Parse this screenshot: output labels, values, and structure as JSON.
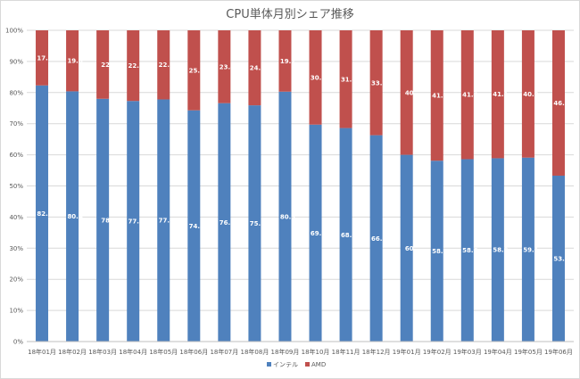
{
  "chart_data": {
    "type": "bar",
    "stacked": "percent",
    "title": "CPU単体月別シェア推移",
    "categories": [
      "18年01月",
      "18年02月",
      "18年03月",
      "18年04月",
      "18年05月",
      "18年06月",
      "18年07月",
      "18年08月",
      "18年09月",
      "18年10月",
      "18年11月",
      "18年12月",
      "19年01月",
      "19年02月",
      "19年03月",
      "19年04月",
      "19年05月",
      "19年06月"
    ],
    "series": [
      {
        "name": "インテル",
        "color": "#4f81bd",
        "values": [
          82.3,
          80.4,
          78,
          77.3,
          77.8,
          74.3,
          76.6,
          75.9,
          80.3,
          69.7,
          68.6,
          66.3,
          60,
          58.1,
          58.6,
          58.9,
          59.1,
          53.3
        ]
      },
      {
        "name": "AMD",
        "color": "#c0504d",
        "values": [
          17.7,
          19.6,
          22,
          22.7,
          22.2,
          25.7,
          23.4,
          24.1,
          19.7,
          30.3,
          31.4,
          33.7,
          40,
          41.9,
          41.4,
          41.1,
          40.9,
          46.7
        ]
      }
    ],
    "yticks": [
      "0%",
      "10%",
      "20%",
      "30%",
      "40%",
      "50%",
      "60%",
      "70%",
      "80%",
      "90%",
      "100%"
    ],
    "ylim": [
      0,
      100
    ],
    "grid": true,
    "legend": "bottom"
  }
}
